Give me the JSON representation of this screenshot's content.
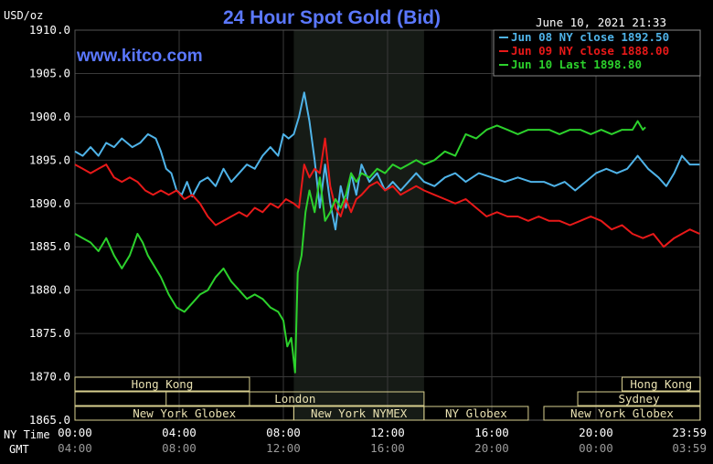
{
  "header": {
    "unit": "USD/oz",
    "title": "24 Hour Spot Gold (Bid)",
    "timestamp": "June 10, 2021 21:33",
    "watermark": "www.kitco.com"
  },
  "colors": {
    "background": "#000000",
    "grid": "#3a3a3a",
    "session_shade": "#161b16",
    "axis_text": "#ffffff",
    "secondary_axis_text": "#9a9a9a",
    "title": "#5b78ff",
    "market_box": "#d8cf8f",
    "market_text": "#e8e0b0",
    "jun08": "#4fb3e8",
    "jun09": "#e81919",
    "jun10": "#2cd12c"
  },
  "axis_rows": {
    "ny_label": "NY Time",
    "gmt_label": "GMT"
  },
  "markets": [
    {
      "name": "Hong Kong",
      "start": 0,
      "end": 6.7,
      "row": 0
    },
    {
      "name": "",
      "start": 0,
      "end": 6.7,
      "row": 1
    },
    {
      "name": "London",
      "start": 3.5,
      "end": 13.4,
      "row": 1
    },
    {
      "name": "New York Globex",
      "start": 0,
      "end": 8.4,
      "row": 2
    },
    {
      "name": "New York NYMEX",
      "start": 8.4,
      "end": 13.4,
      "row": 2
    },
    {
      "name": "NY Globex",
      "start": 13.4,
      "end": 17.4,
      "row": 2
    },
    {
      "name": "Hong Kong",
      "start": 21.0,
      "end": 24,
      "row": 0
    },
    {
      "name": "Sydney",
      "start": 19.3,
      "end": 24,
      "row": 1
    },
    {
      "name": "New York Globex",
      "start": 18.0,
      "end": 24,
      "row": 2
    }
  ],
  "chart_data": {
    "type": "line",
    "title": "24 Hour Spot Gold (Bid)",
    "ylabel": "USD/oz",
    "xlabel": "NY Time / GMT",
    "ylim": [
      1865,
      1910
    ],
    "xlim": [
      0,
      24
    ],
    "yticks": [
      "1910.0",
      "1905.0",
      "1900.0",
      "1895.0",
      "1890.0",
      "1885.0",
      "1880.0",
      "1875.0",
      "1870.0",
      "1865.0"
    ],
    "ytick_values": [
      1910,
      1905,
      1900,
      1895,
      1890,
      1885,
      1880,
      1875,
      1870,
      1865
    ],
    "xticks": [
      {
        "x": 0,
        "ny": "00:00",
        "gmt": "04:00"
      },
      {
        "x": 4,
        "ny": "04:00",
        "gmt": "08:00"
      },
      {
        "x": 8,
        "ny": "08:00",
        "gmt": "12:00"
      },
      {
        "x": 12,
        "ny": "12:00",
        "gmt": "16:00"
      },
      {
        "x": 16,
        "ny": "16:00",
        "gmt": "20:00"
      },
      {
        "x": 20,
        "ny": "20:00",
        "gmt": "00:00"
      },
      {
        "x": 23.98,
        "ny": "23:59",
        "gmt": "03:59"
      }
    ],
    "session_shading": [
      8.4,
      13.4
    ],
    "grid": true,
    "legend_position": "top-right",
    "series": [
      {
        "name": "Jun 08 NY close 1892.50",
        "color": "#4fb3e8",
        "x": [
          0,
          0.3,
          0.6,
          0.9,
          1.2,
          1.5,
          1.8,
          2.2,
          2.5,
          2.8,
          3.1,
          3.3,
          3.5,
          3.7,
          3.9,
          4.1,
          4.3,
          4.5,
          4.8,
          5.1,
          5.4,
          5.7,
          6.0,
          6.3,
          6.6,
          6.9,
          7.2,
          7.5,
          7.8,
          8.0,
          8.2,
          8.4,
          8.6,
          8.8,
          9.0,
          9.2,
          9.4,
          9.6,
          9.8,
          10.0,
          10.2,
          10.4,
          10.6,
          10.8,
          11.0,
          11.3,
          11.6,
          11.9,
          12.2,
          12.5,
          12.8,
          13.1,
          13.4,
          13.8,
          14.2,
          14.6,
          15.0,
          15.5,
          16.0,
          16.5,
          17.0,
          17.5,
          18.0,
          18.4,
          18.8,
          19.2,
          19.6,
          20.0,
          20.4,
          20.8,
          21.2,
          21.6,
          22.0,
          22.4,
          22.7,
          23.0,
          23.3,
          23.6,
          23.98
        ],
        "y": [
          1896.0,
          1895.5,
          1896.5,
          1895.5,
          1897.0,
          1896.5,
          1897.5,
          1896.5,
          1897.0,
          1898.0,
          1897.5,
          1896.0,
          1894.0,
          1893.5,
          1891.5,
          1891.0,
          1892.5,
          1890.8,
          1892.5,
          1893.0,
          1892.0,
          1894.0,
          1892.5,
          1893.5,
          1894.5,
          1894.0,
          1895.5,
          1896.5,
          1895.5,
          1898.0,
          1897.5,
          1898.0,
          1900.0,
          1902.8,
          1899.5,
          1895.0,
          1889.5,
          1894.5,
          1890.0,
          1887.0,
          1892.0,
          1889.5,
          1893.5,
          1891.0,
          1894.5,
          1892.5,
          1893.5,
          1891.5,
          1892.5,
          1891.5,
          1892.5,
          1893.5,
          1892.5,
          1892.0,
          1893.0,
          1893.5,
          1892.5,
          1893.5,
          1893.0,
          1892.5,
          1893.0,
          1892.5,
          1892.5,
          1892.0,
          1892.5,
          1891.5,
          1892.5,
          1893.5,
          1894.0,
          1893.5,
          1894.0,
          1895.5,
          1894.0,
          1893.0,
          1892.0,
          1893.5,
          1895.5,
          1894.5,
          1894.5
        ]
      },
      {
        "name": "Jun 09 NY close 1888.00",
        "color": "#e81919",
        "x": [
          0,
          0.3,
          0.6,
          0.9,
          1.2,
          1.5,
          1.8,
          2.1,
          2.4,
          2.7,
          3.0,
          3.3,
          3.6,
          3.9,
          4.2,
          4.5,
          4.8,
          5.1,
          5.4,
          5.7,
          6.0,
          6.3,
          6.6,
          6.9,
          7.2,
          7.5,
          7.8,
          8.1,
          8.4,
          8.6,
          8.8,
          9.0,
          9.2,
          9.4,
          9.6,
          9.8,
          10.0,
          10.2,
          10.4,
          10.6,
          10.8,
          11.0,
          11.3,
          11.6,
          11.9,
          12.2,
          12.5,
          12.8,
          13.1,
          13.4,
          13.8,
          14.2,
          14.6,
          15.0,
          15.4,
          15.8,
          16.2,
          16.6,
          17.0,
          17.4,
          17.8,
          18.2,
          18.6,
          19.0,
          19.4,
          19.8,
          20.2,
          20.6,
          21.0,
          21.4,
          21.8,
          22.2,
          22.6,
          23.0,
          23.3,
          23.6,
          23.98
        ],
        "y": [
          1894.5,
          1894.0,
          1893.5,
          1894.0,
          1894.5,
          1893.0,
          1892.5,
          1893.0,
          1892.5,
          1891.5,
          1891.0,
          1891.5,
          1891.0,
          1891.5,
          1890.5,
          1891.0,
          1890.0,
          1888.5,
          1887.5,
          1888.0,
          1888.5,
          1889.0,
          1888.5,
          1889.5,
          1889.0,
          1890.0,
          1889.5,
          1890.5,
          1890.0,
          1889.5,
          1894.5,
          1893.0,
          1894.0,
          1893.5,
          1897.5,
          1892.0,
          1889.5,
          1888.5,
          1890.5,
          1889.0,
          1890.5,
          1891.0,
          1892.0,
          1892.5,
          1891.5,
          1892.0,
          1891.0,
          1891.5,
          1892.0,
          1891.5,
          1891.0,
          1890.5,
          1890.0,
          1890.5,
          1889.5,
          1888.5,
          1889.0,
          1888.5,
          1888.5,
          1888.0,
          1888.5,
          1888.0,
          1888.0,
          1887.5,
          1888.0,
          1888.5,
          1888.0,
          1887.0,
          1887.5,
          1886.5,
          1886.0,
          1886.5,
          1885.0,
          1886.0,
          1886.5,
          1887.0,
          1886.5
        ]
      },
      {
        "name": "Jun 10 Last 1898.80",
        "color": "#2cd12c",
        "x": [
          0,
          0.3,
          0.6,
          0.9,
          1.2,
          1.5,
          1.8,
          2.1,
          2.4,
          2.6,
          2.8,
          3.0,
          3.3,
          3.6,
          3.9,
          4.2,
          4.5,
          4.8,
          5.1,
          5.4,
          5.7,
          6.0,
          6.3,
          6.6,
          6.9,
          7.2,
          7.5,
          7.8,
          8.0,
          8.15,
          8.3,
          8.45,
          8.55,
          8.7,
          8.85,
          9.0,
          9.2,
          9.4,
          9.6,
          9.8,
          10.0,
          10.2,
          10.4,
          10.6,
          10.8,
          11.0,
          11.3,
          11.6,
          11.9,
          12.2,
          12.5,
          12.8,
          13.1,
          13.4,
          13.8,
          14.2,
          14.6,
          15.0,
          15.4,
          15.8,
          16.2,
          16.6,
          17.0,
          17.4,
          17.8,
          18.2,
          18.6,
          19.0,
          19.4,
          19.8,
          20.2,
          20.6,
          21.0,
          21.4,
          21.6,
          21.8,
          21.9
        ],
        "y": [
          1886.5,
          1886.0,
          1885.5,
          1884.5,
          1886.0,
          1884.0,
          1882.5,
          1884.0,
          1886.5,
          1885.5,
          1884.0,
          1883.0,
          1881.5,
          1879.5,
          1878.0,
          1877.5,
          1878.5,
          1879.5,
          1880.0,
          1881.5,
          1882.5,
          1881.0,
          1880.0,
          1879.0,
          1879.5,
          1879.0,
          1878.0,
          1877.5,
          1876.5,
          1873.5,
          1874.5,
          1870.5,
          1882.0,
          1884.0,
          1889.0,
          1891.5,
          1889.0,
          1893.0,
          1888.0,
          1889.0,
          1890.5,
          1889.5,
          1891.0,
          1893.5,
          1892.5,
          1893.5,
          1893.0,
          1894.0,
          1893.5,
          1894.5,
          1894.0,
          1894.5,
          1895.0,
          1894.5,
          1895.0,
          1896.0,
          1895.5,
          1898.0,
          1897.5,
          1898.5,
          1899.0,
          1898.5,
          1898.0,
          1898.5,
          1898.5,
          1898.5,
          1898.0,
          1898.5,
          1898.5,
          1898.0,
          1898.5,
          1898.0,
          1898.5,
          1898.5,
          1899.5,
          1898.5,
          1898.8
        ]
      }
    ]
  }
}
